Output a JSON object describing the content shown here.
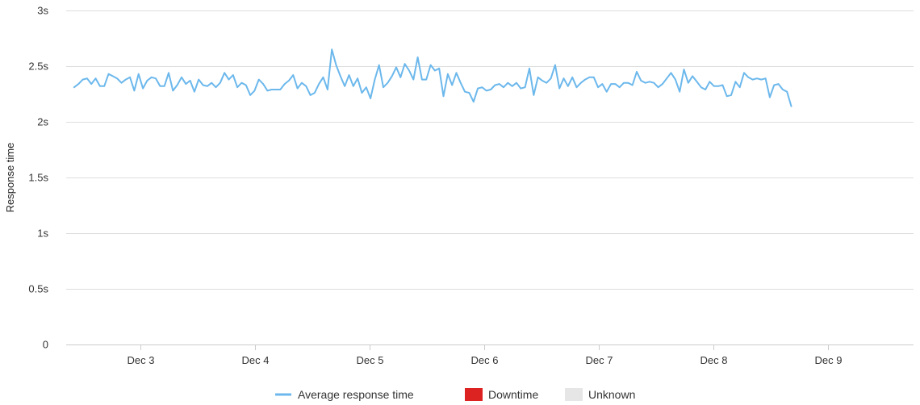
{
  "chart_data": {
    "type": "line",
    "title": "",
    "xlabel": "",
    "ylabel": "Response time",
    "ylim": [
      0,
      3
    ],
    "y_ticks": [
      {
        "value": 0,
        "label": "0"
      },
      {
        "value": 0.5,
        "label": "0.5s"
      },
      {
        "value": 1,
        "label": "1s"
      },
      {
        "value": 1.5,
        "label": "1.5s"
      },
      {
        "value": 2,
        "label": "2s"
      },
      {
        "value": 2.5,
        "label": "2.5s"
      },
      {
        "value": 3,
        "label": "3s"
      }
    ],
    "xlim": [
      2.35,
      9.75
    ],
    "x_ticks": [
      {
        "value": 3,
        "label": "Dec 3"
      },
      {
        "value": 4,
        "label": "Dec 4"
      },
      {
        "value": 5,
        "label": "Dec 5"
      },
      {
        "value": 6,
        "label": "Dec 6"
      },
      {
        "value": 7,
        "label": "Dec 7"
      },
      {
        "value": 8,
        "label": "Dec 8"
      },
      {
        "value": 9,
        "label": "Dec 9"
      }
    ],
    "grid": true,
    "legend_position": "bottom-center",
    "colors": {
      "line": "#6cb8ec",
      "downtime": "#dd2222",
      "unknown": "#e6e6e6",
      "grid": "#dddddd",
      "axis": "#cccccc"
    },
    "legend": [
      {
        "label": "Average response time",
        "kind": "line",
        "color": "#6cb8ec"
      },
      {
        "label": "Downtime",
        "kind": "box",
        "color": "#dd2222"
      },
      {
        "label": "Unknown",
        "kind": "box",
        "color": "#e6e6e6"
      }
    ],
    "series": [
      {
        "name": "Average response time",
        "x_start": 2.42,
        "x_step": 0.0375,
        "values": [
          2.31,
          2.34,
          2.38,
          2.39,
          2.34,
          2.39,
          2.32,
          2.32,
          2.43,
          2.41,
          2.39,
          2.35,
          2.38,
          2.4,
          2.28,
          2.43,
          2.3,
          2.37,
          2.4,
          2.39,
          2.32,
          2.32,
          2.44,
          2.28,
          2.33,
          2.4,
          2.34,
          2.37,
          2.27,
          2.38,
          2.33,
          2.32,
          2.35,
          2.31,
          2.35,
          2.44,
          2.38,
          2.42,
          2.31,
          2.35,
          2.33,
          2.24,
          2.28,
          2.38,
          2.34,
          2.28,
          2.29,
          2.29,
          2.29,
          2.34,
          2.37,
          2.42,
          2.3,
          2.35,
          2.32,
          2.24,
          2.26,
          2.34,
          2.4,
          2.29,
          2.65,
          2.51,
          2.41,
          2.32,
          2.42,
          2.32,
          2.39,
          2.26,
          2.31,
          2.21,
          2.38,
          2.51,
          2.31,
          2.35,
          2.41,
          2.49,
          2.4,
          2.52,
          2.46,
          2.38,
          2.58,
          2.38,
          2.38,
          2.51,
          2.46,
          2.48,
          2.23,
          2.43,
          2.33,
          2.44,
          2.35,
          2.27,
          2.26,
          2.18,
          2.3,
          2.31,
          2.28,
          2.29,
          2.33,
          2.34,
          2.31,
          2.35,
          2.32,
          2.35,
          2.3,
          2.31,
          2.48,
          2.24,
          2.4,
          2.37,
          2.35,
          2.39,
          2.51,
          2.3,
          2.39,
          2.32,
          2.4,
          2.31,
          2.35,
          2.38,
          2.4,
          2.4,
          2.31,
          2.34,
          2.27,
          2.34,
          2.34,
          2.31,
          2.35,
          2.35,
          2.33,
          2.45,
          2.37,
          2.35,
          2.36,
          2.35,
          2.31,
          2.34,
          2.39,
          2.44,
          2.38,
          2.27,
          2.47,
          2.35,
          2.41,
          2.36,
          2.31,
          2.29,
          2.36,
          2.32,
          2.32,
          2.33,
          2.23,
          2.24,
          2.36,
          2.31,
          2.44,
          2.4,
          2.38,
          2.39,
          2.38,
          2.39,
          2.22,
          2.33,
          2.34,
          2.29,
          2.27,
          2.14
        ]
      }
    ]
  }
}
